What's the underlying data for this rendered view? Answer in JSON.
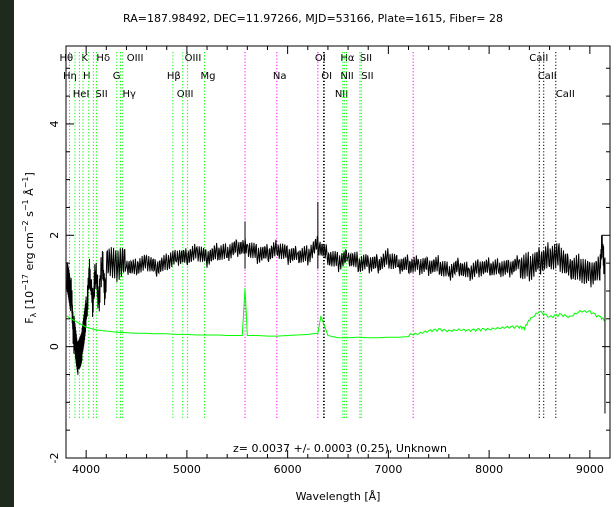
{
  "header": {
    "title": "RA=187.98492, DEC=11.97266, MJD=53166, Plate=1615, Fiber= 28"
  },
  "chart_data": {
    "type": "line",
    "title": "RA=187.98492, DEC=11.97266, MJD=53166, Plate=1615, Fiber= 28",
    "xlabel": "Wavelength [Å]",
    "ylabel": "F_λ [10^-17 erg cm^-2 s^-1 Å^-1]",
    "xlim": [
      3800,
      9200
    ],
    "ylim": [
      -2.0,
      5.4
    ],
    "x_ticks": [
      4000,
      5000,
      6000,
      7000,
      8000,
      9000
    ],
    "y_ticks": [
      -2,
      0,
      2,
      4
    ],
    "redshift_label": "z= 0.0037 +/- 0.0003 (0.25), Unknown",
    "grid": false,
    "legend": "none",
    "series": [
      {
        "color": "#000000",
        "x": [
          3810,
          3850,
          3880,
          3920,
          3960,
          4000,
          4050,
          4100,
          4150,
          4200,
          4300,
          4400,
          4500,
          4600,
          4700,
          4800,
          4900,
          5000,
          5100,
          5200,
          5300,
          5400,
          5500,
          5600,
          5700,
          5800,
          5900,
          6000,
          6100,
          6200,
          6300,
          6400,
          6500,
          6600,
          6700,
          6800,
          6900,
          7000,
          7100,
          7200,
          7300,
          7400,
          7500,
          7600,
          7700,
          7800,
          7900,
          8000,
          8100,
          8200,
          8300,
          8400,
          8500,
          8600,
          8700,
          8800,
          8900,
          9000,
          9100,
          9150
        ],
        "y": [
          1.0,
          0.7,
          0.4,
          0.0,
          0.3,
          0.9,
          1.1,
          1.0,
          1.2,
          1.3,
          1.2,
          1.3,
          1.3,
          1.4,
          1.3,
          1.4,
          1.5,
          1.5,
          1.6,
          1.5,
          1.6,
          1.6,
          1.7,
          1.7,
          1.6,
          1.6,
          1.7,
          1.6,
          1.6,
          1.6,
          1.8,
          1.6,
          1.5,
          1.6,
          1.5,
          1.5,
          1.5,
          1.6,
          1.5,
          1.5,
          1.5,
          1.5,
          1.5,
          1.4,
          1.5,
          1.4,
          1.5,
          1.5,
          1.5,
          1.5,
          1.6,
          1.6,
          1.7,
          1.8,
          1.8,
          1.6,
          1.6,
          1.5,
          1.6,
          1.6
        ]
      },
      {
        "color": "#00ff00",
        "x": [
          3810,
          3850,
          3900,
          3950,
          4000,
          4100,
          4200,
          4300,
          4400,
          4500,
          4600,
          4700,
          4800,
          4900,
          5000,
          5100,
          5200,
          5300,
          5400,
          5500,
          5550,
          5577,
          5600,
          5700,
          5800,
          5900,
          6000,
          6100,
          6200,
          6300,
          6330,
          6400,
          6500,
          6600,
          6700,
          6800,
          6900,
          7000,
          7100,
          7200,
          7300,
          7400,
          7500,
          7600,
          7700,
          7800,
          7900,
          8000,
          8100,
          8200,
          8300,
          8350,
          8400,
          8500,
          8600,
          8700,
          8800,
          8900,
          9000,
          9100,
          9150
        ],
        "y": [
          0.55,
          0.5,
          0.45,
          0.4,
          0.35,
          0.3,
          0.28,
          0.26,
          0.25,
          0.24,
          0.24,
          0.23,
          0.23,
          0.22,
          0.22,
          0.21,
          0.21,
          0.21,
          0.2,
          0.2,
          0.2,
          1.05,
          0.2,
          0.2,
          0.19,
          0.19,
          0.2,
          0.21,
          0.22,
          0.24,
          0.55,
          0.2,
          0.16,
          0.16,
          0.17,
          0.16,
          0.16,
          0.17,
          0.17,
          0.18,
          0.2,
          0.25,
          0.28,
          0.25,
          0.27,
          0.26,
          0.28,
          0.28,
          0.3,
          0.32,
          0.33,
          0.3,
          0.45,
          0.6,
          0.5,
          0.55,
          0.5,
          0.6,
          0.6,
          0.5,
          0.45
        ]
      }
    ],
    "line_markers": [
      {
        "color": "#00ff00",
        "lines": [
          {
            "x": 3835,
            "label": "Hθ",
            "row": 0,
            "dx": -10
          },
          {
            "x": 3889,
            "label": "Hη",
            "row": 1,
            "dx": -12
          },
          {
            "x": 3933,
            "label": "K",
            "row": 0,
            "dx": 2
          },
          {
            "x": 3969,
            "label": "H",
            "row": 1,
            "dx": 0
          },
          {
            "x": 4026,
            "label": "HeI",
            "row": 2,
            "dx": -16
          },
          {
            "x": 4072,
            "label": "SII",
            "row": 2,
            "dx": 2
          },
          {
            "x": 4102,
            "label": "Hδ",
            "row": 0,
            "dx": 0
          },
          {
            "x": 4304,
            "label": "G",
            "row": 1,
            "dx": -4
          },
          {
            "x": 4341,
            "label": "Hγ",
            "row": 2,
            "dx": 2
          },
          {
            "x": 4363,
            "label": "OIII",
            "row": 0,
            "dx": 4
          },
          {
            "x": 4861,
            "label": "Hβ",
            "row": 1,
            "dx": -6
          },
          {
            "x": 4959,
            "label": "OIII",
            "row": 2,
            "dx": -6
          },
          {
            "x": 5007,
            "label": "OIII",
            "row": 0,
            "dx": -3
          },
          {
            "x": 5175,
            "label": "Mg",
            "row": 1,
            "dx": -4
          },
          {
            "x": 6548,
            "label": "NII",
            "row": 2,
            "dx": -8
          },
          {
            "x": 6563,
            "label": "Hα",
            "row": 0,
            "dx": -4
          },
          {
            "x": 6583,
            "label": "NII",
            "row": 1,
            "dx": -6
          },
          {
            "x": 6717,
            "label": "SII",
            "row": 0,
            "dx": 0
          },
          {
            "x": 6731,
            "label": "SII",
            "row": 1,
            "dx": 0
          }
        ]
      },
      {
        "color": "#ff00ff",
        "lines": [
          {
            "x": 5577,
            "label": ""
          },
          {
            "x": 5893,
            "label": "Na",
            "row": 1,
            "dx": -4
          },
          {
            "x": 6300,
            "label": "OI",
            "row": 0,
            "dx": -3
          },
          {
            "x": 7246,
            "label": ""
          }
        ]
      },
      {
        "color": "#000000",
        "lines": [
          {
            "x": 6364,
            "label": "OI",
            "row": 1,
            "dx": -3
          },
          {
            "x": 6356,
            "label": "OI",
            "row": 0,
            "dx": 0,
            "hidden": true
          },
          {
            "x": 8498,
            "label": "CaII",
            "row": 0,
            "dx": -10
          },
          {
            "x": 8542,
            "label": "CaII",
            "row": 1,
            "dx": -6
          },
          {
            "x": 8662,
            "label": "CaII",
            "row": 2,
            "dx": 0
          }
        ]
      }
    ]
  }
}
